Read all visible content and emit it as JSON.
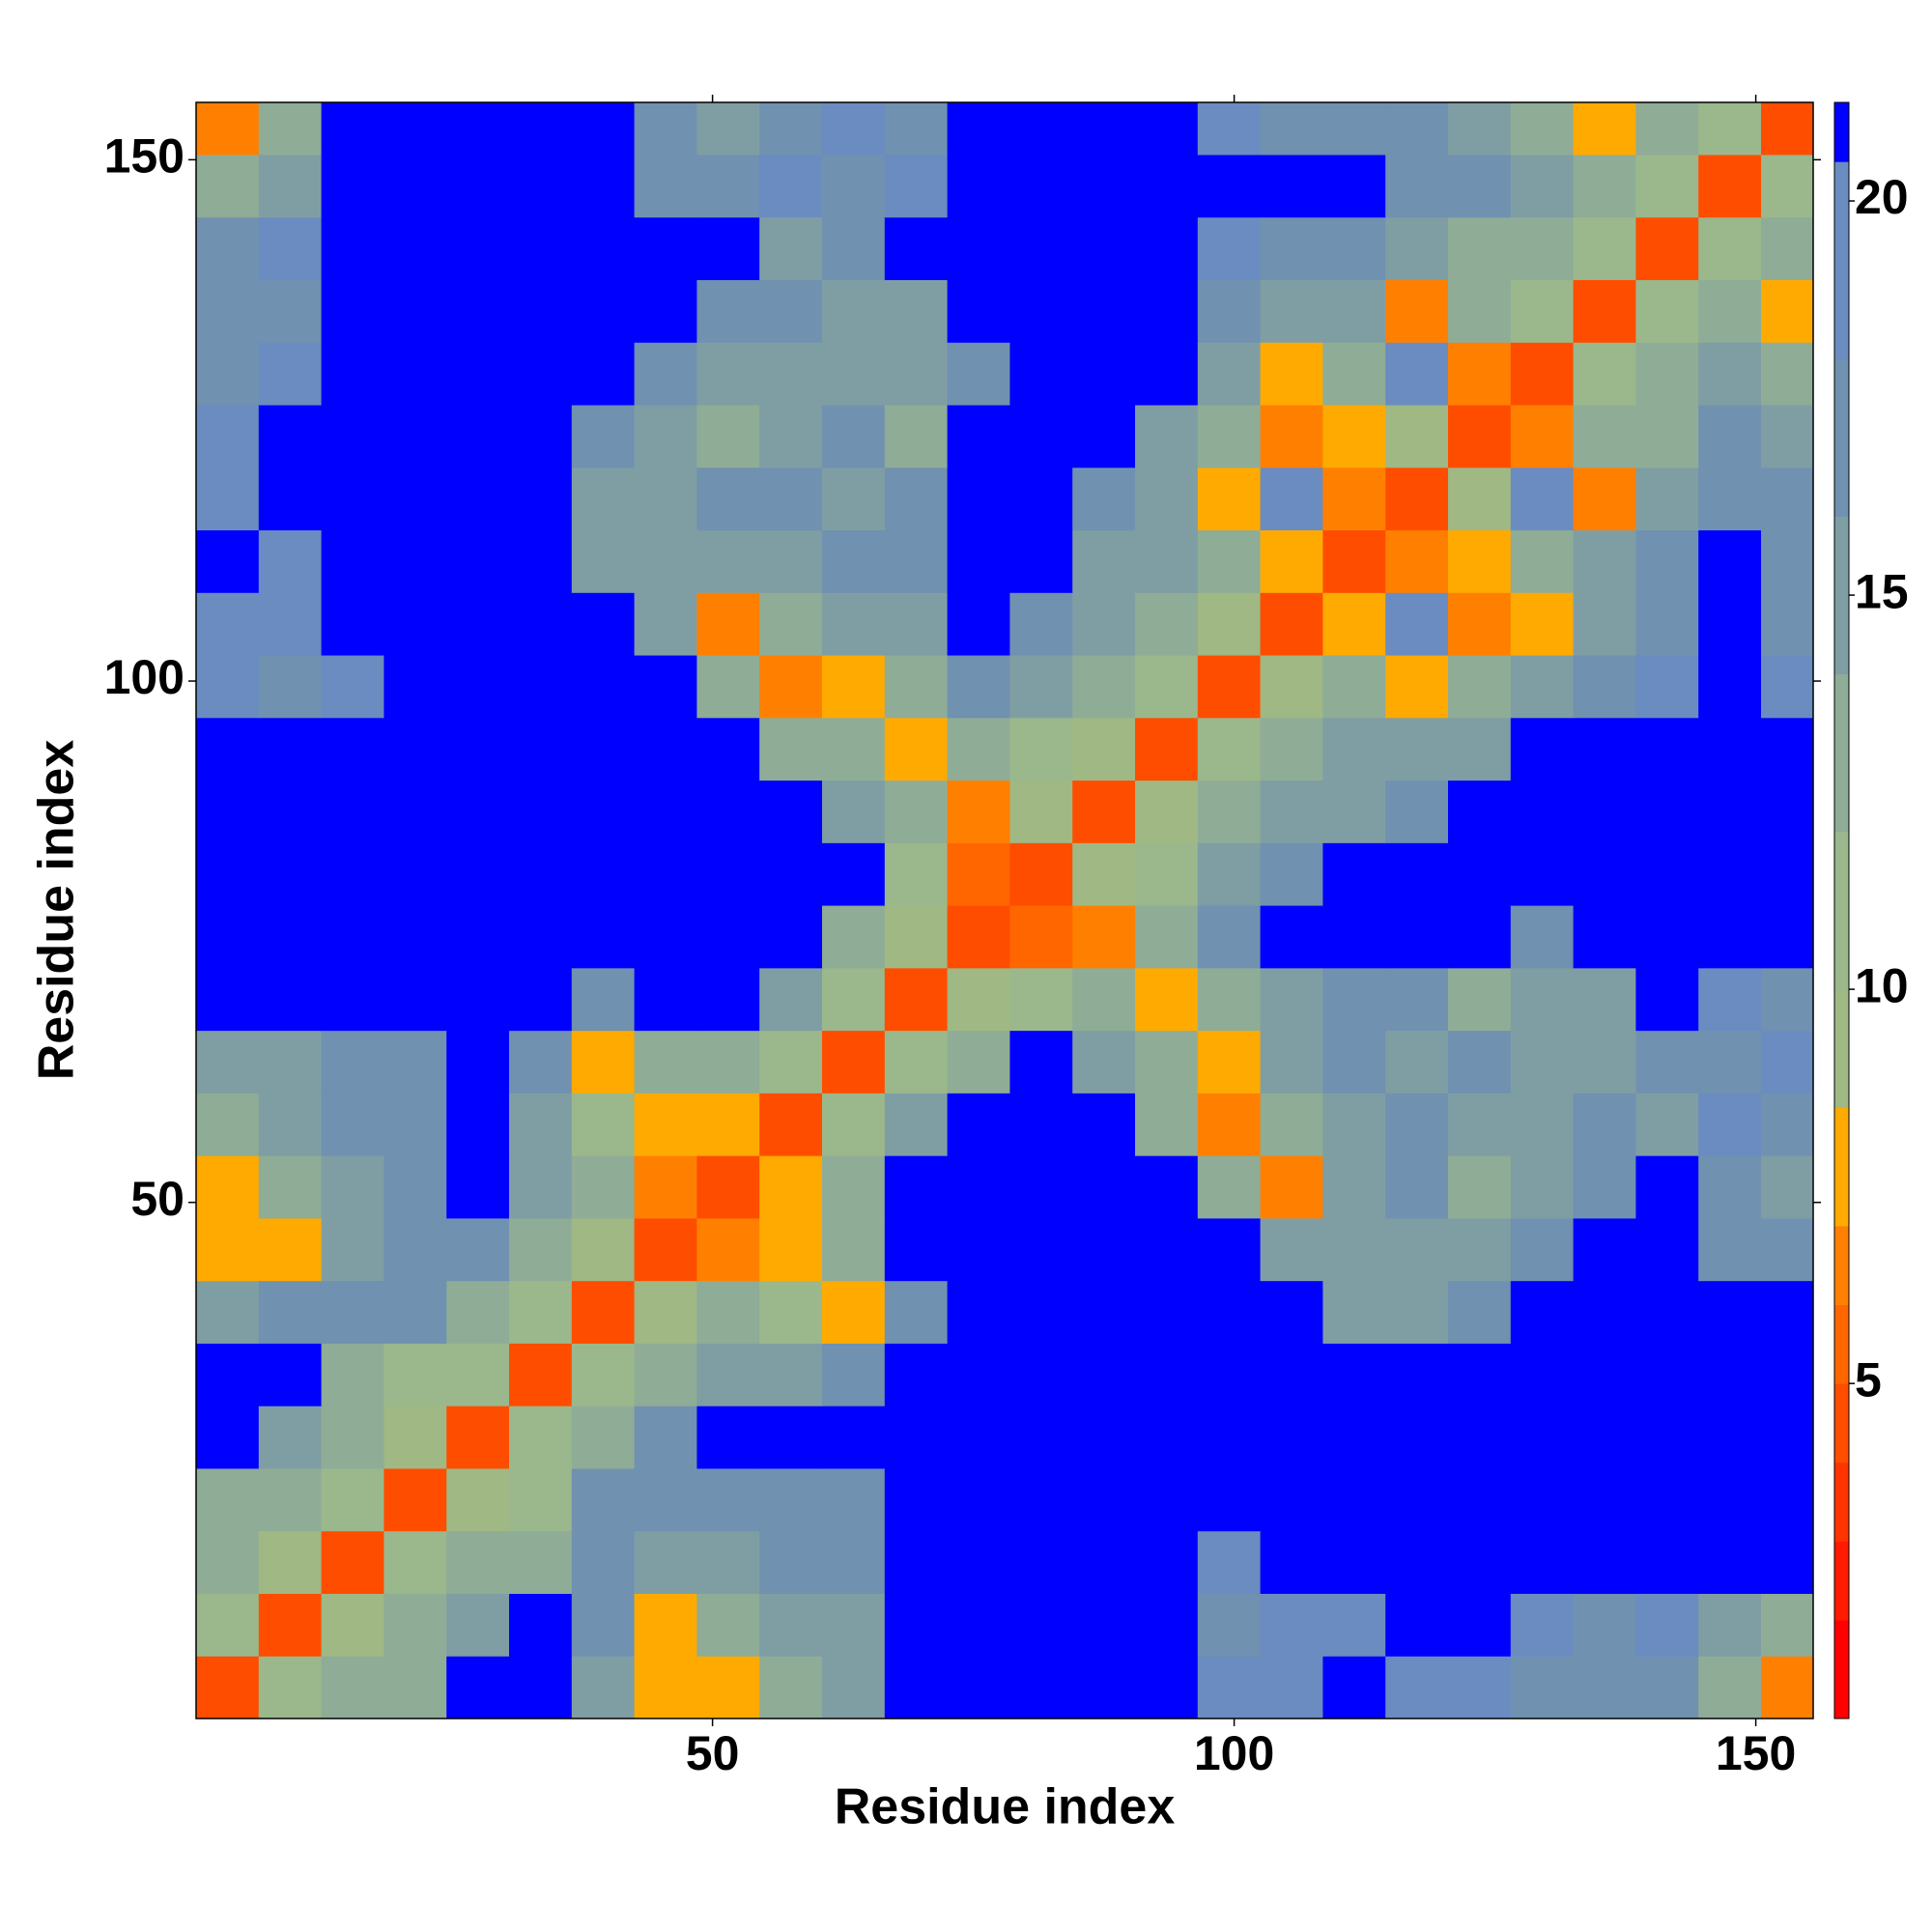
{
  "chart_data": {
    "type": "heatmap",
    "xlabel": "Residue index",
    "ylabel": "Residue index",
    "x": [
      3.5,
      9.5,
      15.5,
      21.5,
      27.5,
      33.5,
      39.5,
      45.5,
      51.5,
      57.5,
      63.5,
      69.5,
      75.5,
      81.5,
      87.5,
      93.5,
      99.5,
      105.5,
      111.5,
      117.5,
      123.5,
      129.5,
      135.5,
      141.5,
      147.5,
      153.5
    ],
    "y": [
      3.5,
      9.5,
      15.5,
      21.5,
      27.5,
      33.5,
      39.5,
      45.5,
      51.5,
      57.5,
      63.5,
      69.5,
      75.5,
      81.5,
      87.5,
      93.5,
      99.5,
      105.5,
      111.5,
      117.5,
      123.5,
      129.5,
      135.5,
      141.5,
      147.5,
      153.5
    ],
    "values": [
      [
        4,
        10,
        12,
        13,
        21,
        21,
        15,
        8,
        7,
        13,
        15,
        21,
        21,
        21,
        21,
        21,
        18,
        18,
        21,
        18,
        18,
        17,
        17,
        16,
        12,
        6
      ],
      [
        10,
        4,
        9,
        12,
        15,
        21,
        16,
        7,
        12,
        15,
        14,
        21,
        21,
        21,
        21,
        21,
        17,
        18,
        18,
        21,
        21,
        18,
        17,
        18,
        15,
        13
      ],
      [
        12,
        9,
        4,
        10,
        12,
        13,
        17,
        14,
        15,
        17,
        16,
        21,
        21,
        21,
        21,
        21,
        18,
        21,
        21,
        21,
        21,
        21,
        21,
        21,
        21,
        21
      ],
      [
        13,
        12,
        10,
        4,
        9,
        11,
        16,
        17,
        16,
        17,
        17,
        21,
        21,
        21,
        21,
        21,
        21,
        21,
        21,
        21,
        21,
        21,
        21,
        21,
        21,
        21
      ],
      [
        21,
        15,
        12,
        9,
        4,
        10,
        12,
        16,
        21,
        21,
        21,
        21,
        21,
        21,
        21,
        21,
        21,
        21,
        21,
        21,
        21,
        21,
        21,
        21,
        21,
        21
      ],
      [
        21,
        21,
        13,
        11,
        10,
        4,
        11,
        12,
        15,
        14,
        17,
        21,
        21,
        21,
        21,
        21,
        21,
        21,
        21,
        21,
        21,
        21,
        21,
        21,
        21,
        21
      ],
      [
        15,
        16,
        17,
        16,
        12,
        11,
        4,
        9,
        12,
        10,
        8,
        16,
        21,
        21,
        21,
        21,
        21,
        21,
        15,
        15,
        17,
        21,
        21,
        21,
        21,
        21
      ],
      [
        8,
        7,
        14,
        17,
        16,
        12,
        9,
        4,
        6,
        7,
        13,
        21,
        21,
        21,
        21,
        21,
        21,
        14,
        14,
        15,
        14,
        16,
        21,
        21,
        17,
        16
      ],
      [
        7,
        12,
        15,
        16,
        21,
        15,
        12,
        6,
        4,
        8,
        12,
        21,
        21,
        21,
        21,
        21,
        12,
        6,
        14,
        16,
        13,
        15,
        17,
        21,
        17,
        14
      ],
      [
        13,
        15,
        17,
        17,
        21,
        14,
        10,
        7,
        8,
        4,
        10,
        14,
        21,
        21,
        21,
        13,
        6,
        12,
        14,
        17,
        14,
        14,
        16,
        15,
        18,
        16
      ],
      [
        15,
        14,
        16,
        17,
        21,
        17,
        8,
        13,
        12,
        10,
        4,
        10,
        13,
        21,
        15,
        12,
        7,
        14,
        16,
        15,
        16,
        15,
        14,
        16,
        17,
        18
      ],
      [
        21,
        21,
        21,
        21,
        21,
        21,
        16,
        21,
        21,
        14,
        10,
        4,
        9,
        11,
        12,
        7,
        13,
        15,
        17,
        16,
        13,
        14,
        15,
        21,
        18,
        17
      ],
      [
        21,
        21,
        21,
        21,
        21,
        21,
        21,
        21,
        21,
        21,
        13,
        9,
        4,
        5,
        6,
        13,
        17,
        21,
        21,
        21,
        21,
        17,
        21,
        21,
        21,
        21
      ],
      [
        21,
        21,
        21,
        21,
        21,
        21,
        21,
        21,
        21,
        21,
        21,
        11,
        5,
        4,
        9,
        11,
        14,
        16,
        21,
        21,
        21,
        21,
        21,
        21,
        21,
        21
      ],
      [
        21,
        21,
        21,
        21,
        21,
        21,
        21,
        21,
        21,
        21,
        15,
        12,
        6,
        9,
        4,
        9,
        12,
        14,
        15,
        16,
        21,
        21,
        21,
        21,
        21,
        21
      ],
      [
        21,
        21,
        21,
        21,
        21,
        21,
        21,
        21,
        21,
        13,
        12,
        7,
        13,
        11,
        9,
        4,
        10,
        12,
        14,
        14,
        15,
        21,
        21,
        21,
        21,
        21
      ],
      [
        18,
        17,
        18,
        21,
        21,
        21,
        21,
        21,
        12,
        6,
        7,
        13,
        17,
        14,
        12,
        10,
        4,
        9,
        12,
        7,
        13,
        15,
        17,
        18,
        21,
        18
      ],
      [
        18,
        18,
        21,
        21,
        21,
        21,
        21,
        14,
        6,
        12,
        14,
        15,
        21,
        16,
        14,
        12,
        9,
        4,
        7,
        18,
        6,
        7,
        15,
        17,
        21,
        17
      ],
      [
        21,
        18,
        21,
        21,
        21,
        21,
        15,
        14,
        14,
        14,
        16,
        17,
        21,
        21,
        15,
        14,
        12,
        7,
        4,
        6,
        7,
        12,
        14,
        17,
        21,
        16
      ],
      [
        18,
        21,
        21,
        21,
        21,
        21,
        15,
        15,
        16,
        17,
        15,
        16,
        21,
        21,
        16,
        14,
        7,
        18,
        6,
        4,
        9,
        18,
        6,
        15,
        17,
        17
      ],
      [
        18,
        21,
        21,
        21,
        21,
        21,
        17,
        14,
        13,
        14,
        16,
        13,
        21,
        21,
        21,
        15,
        13,
        6,
        7,
        9,
        4,
        6,
        12,
        13,
        16,
        15
      ],
      [
        17,
        18,
        21,
        21,
        21,
        21,
        21,
        16,
        15,
        14,
        15,
        14,
        17,
        21,
        21,
        21,
        15,
        7,
        12,
        18,
        6,
        4,
        10,
        13,
        14,
        13
      ],
      [
        17,
        17,
        21,
        21,
        21,
        21,
        21,
        21,
        17,
        16,
        14,
        15,
        21,
        21,
        21,
        21,
        17,
        15,
        14,
        6,
        12,
        10,
        4,
        10,
        12,
        7
      ],
      [
        16,
        18,
        21,
        21,
        21,
        21,
        21,
        21,
        21,
        15,
        16,
        21,
        21,
        21,
        21,
        21,
        18,
        17,
        17,
        15,
        13,
        13,
        10,
        4,
        10,
        12
      ],
      [
        12,
        15,
        21,
        21,
        21,
        21,
        21,
        17,
        17,
        18,
        17,
        18,
        21,
        21,
        21,
        21,
        21,
        21,
        21,
        17,
        16,
        14,
        12,
        10,
        4,
        10
      ],
      [
        6,
        13,
        21,
        21,
        21,
        21,
        21,
        16,
        14,
        16,
        18,
        17,
        21,
        21,
        21,
        21,
        18,
        17,
        16,
        17,
        15,
        13,
        7,
        12,
        10,
        4
      ]
    ],
    "xlim": [
      0.5,
      155.5
    ],
    "ylim": [
      0.5,
      155.5
    ],
    "xticks": [
      50,
      100,
      150
    ],
    "yticks": [
      50,
      100,
      150
    ],
    "clim": [
      0.75,
      21.25
    ],
    "cticks": [
      5,
      10,
      15,
      20
    ],
    "colorscale": [
      [
        0.75,
        "#ff0000"
      ],
      [
        2,
        "#ff1a00"
      ],
      [
        3,
        "#ff3300"
      ],
      [
        4,
        "#ff4d00"
      ],
      [
        5,
        "#ff6600"
      ],
      [
        6,
        "#ff8000"
      ],
      [
        7,
        "#ffaa00"
      ],
      [
        8.5,
        "#9fb884"
      ],
      [
        10,
        "#9ab88c"
      ],
      [
        12,
        "#8fac96"
      ],
      [
        14,
        "#7f9ea4"
      ],
      [
        16,
        "#7091b0"
      ],
      [
        18,
        "#6a8cc0"
      ],
      [
        20.5,
        "#0000ff"
      ]
    ]
  }
}
